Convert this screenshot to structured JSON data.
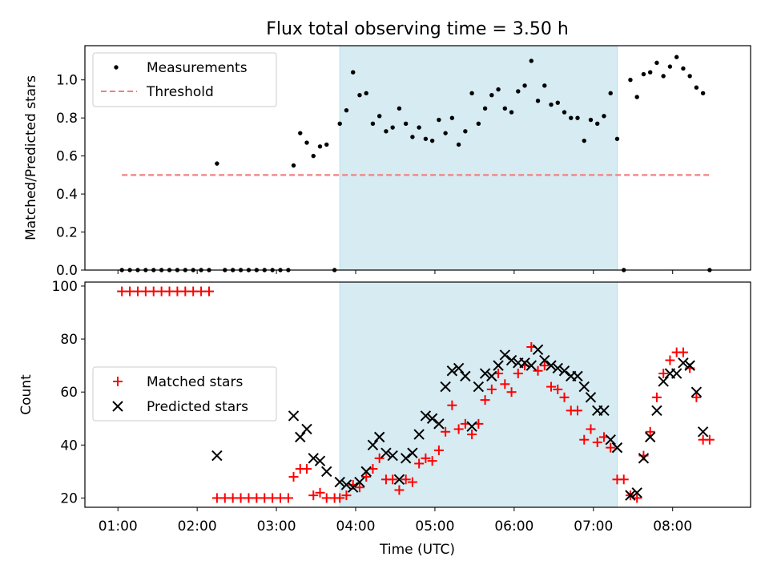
{
  "title": "Flux total observing time = 3.50 h",
  "x_axis": {
    "label": "Time (UTC)",
    "tick_labels": [
      "01:00",
      "02:00",
      "03:00",
      "04:00",
      "05:00",
      "06:00",
      "07:00",
      "08:00"
    ]
  },
  "chart_data": [
    {
      "type": "scatter",
      "ylabel": "Matched/Predicted stars",
      "ylim": [
        0,
        1.18
      ],
      "yticks": [
        0.0,
        0.2,
        0.4,
        0.6,
        0.8,
        1.0
      ],
      "ytick_labels": [
        "0.0",
        "0.2",
        "0.4",
        "0.6",
        "0.8",
        "1.0"
      ],
      "shaded_interval": [
        "03:48",
        "07:18"
      ],
      "legend_position": "upper-left",
      "series": [
        {
          "name": "Measurements",
          "marker": "dot",
          "color": "#000000",
          "points": [
            [
              "01:03",
              0.0
            ],
            [
              "01:09",
              0.0
            ],
            [
              "01:15",
              0.0
            ],
            [
              "01:21",
              0.0
            ],
            [
              "01:27",
              0.0
            ],
            [
              "01:33",
              0.0
            ],
            [
              "01:39",
              0.0
            ],
            [
              "01:45",
              0.0
            ],
            [
              "01:51",
              0.0
            ],
            [
              "01:57",
              0.0
            ],
            [
              "02:03",
              0.0
            ],
            [
              "02:09",
              0.0
            ],
            [
              "02:15",
              0.56
            ],
            [
              "02:21",
              0.0
            ],
            [
              "02:27",
              0.0
            ],
            [
              "02:33",
              0.0
            ],
            [
              "02:39",
              0.0
            ],
            [
              "02:45",
              0.0
            ],
            [
              "02:51",
              0.0
            ],
            [
              "02:57",
              0.0
            ],
            [
              "03:03",
              0.0
            ],
            [
              "03:09",
              0.0
            ],
            [
              "03:13",
              0.55
            ],
            [
              "03:18",
              0.72
            ],
            [
              "03:23",
              0.67
            ],
            [
              "03:28",
              0.6
            ],
            [
              "03:33",
              0.65
            ],
            [
              "03:38",
              0.66
            ],
            [
              "03:44",
              0.0
            ],
            [
              "03:48",
              0.77
            ],
            [
              "03:53",
              0.84
            ],
            [
              "03:58",
              1.04
            ],
            [
              "04:03",
              0.92
            ],
            [
              "04:08",
              0.93
            ],
            [
              "04:13",
              0.77
            ],
            [
              "04:18",
              0.81
            ],
            [
              "04:23",
              0.73
            ],
            [
              "04:28",
              0.75
            ],
            [
              "04:33",
              0.85
            ],
            [
              "04:38",
              0.77
            ],
            [
              "04:43",
              0.7
            ],
            [
              "04:48",
              0.75
            ],
            [
              "04:53",
              0.69
            ],
            [
              "04:58",
              0.68
            ],
            [
              "05:03",
              0.79
            ],
            [
              "05:08",
              0.72
            ],
            [
              "05:13",
              0.8
            ],
            [
              "05:18",
              0.66
            ],
            [
              "05:23",
              0.73
            ],
            [
              "05:28",
              0.93
            ],
            [
              "05:33",
              0.77
            ],
            [
              "05:38",
              0.85
            ],
            [
              "05:43",
              0.92
            ],
            [
              "05:48",
              0.95
            ],
            [
              "05:53",
              0.85
            ],
            [
              "05:58",
              0.83
            ],
            [
              "06:03",
              0.94
            ],
            [
              "06:08",
              0.97
            ],
            [
              "06:13",
              1.1
            ],
            [
              "06:18",
              0.89
            ],
            [
              "06:23",
              0.97
            ],
            [
              "06:28",
              0.87
            ],
            [
              "06:33",
              0.88
            ],
            [
              "06:38",
              0.83
            ],
            [
              "06:43",
              0.8
            ],
            [
              "06:48",
              0.8
            ],
            [
              "06:53",
              0.68
            ],
            [
              "06:58",
              0.79
            ],
            [
              "07:03",
              0.77
            ],
            [
              "07:08",
              0.81
            ],
            [
              "07:13",
              0.93
            ],
            [
              "07:18",
              0.69
            ],
            [
              "07:23",
              0.0
            ],
            [
              "07:28",
              1.0
            ],
            [
              "07:33",
              0.91
            ],
            [
              "07:38",
              1.03
            ],
            [
              "07:43",
              1.04
            ],
            [
              "07:48",
              1.09
            ],
            [
              "07:53",
              1.02
            ],
            [
              "07:58",
              1.07
            ],
            [
              "08:03",
              1.12
            ],
            [
              "08:08",
              1.06
            ],
            [
              "08:13",
              1.02
            ],
            [
              "08:18",
              0.96
            ],
            [
              "08:23",
              0.93
            ],
            [
              "08:28",
              0.0
            ]
          ]
        },
        {
          "name": "Threshold",
          "type": "line",
          "style": "dashed",
          "color": "#f08080",
          "points": [
            [
              "01:03",
              0.5
            ],
            [
              "08:28",
              0.5
            ]
          ]
        }
      ]
    },
    {
      "type": "scatter",
      "ylabel": "Count",
      "ylim": [
        16.5,
        101.5
      ],
      "yticks": [
        20,
        40,
        60,
        80,
        100
      ],
      "ytick_labels": [
        "20",
        "40",
        "60",
        "80",
        "100"
      ],
      "shaded_interval": [
        "03:48",
        "07:18"
      ],
      "legend_position": "center-left",
      "series": [
        {
          "name": "Matched stars",
          "marker": "plus",
          "color": "#ff0000",
          "points": [
            [
              "01:03",
              98
            ],
            [
              "01:09",
              98
            ],
            [
              "01:15",
              98
            ],
            [
              "01:21",
              98
            ],
            [
              "01:27",
              98
            ],
            [
              "01:33",
              98
            ],
            [
              "01:39",
              98
            ],
            [
              "01:45",
              98
            ],
            [
              "01:51",
              98
            ],
            [
              "01:57",
              98
            ],
            [
              "02:03",
              98
            ],
            [
              "02:09",
              98
            ],
            [
              "02:15",
              20
            ],
            [
              "02:21",
              20
            ],
            [
              "02:27",
              20
            ],
            [
              "02:33",
              20
            ],
            [
              "02:39",
              20
            ],
            [
              "02:45",
              20
            ],
            [
              "02:51",
              20
            ],
            [
              "02:57",
              20
            ],
            [
              "03:03",
              20
            ],
            [
              "03:09",
              20
            ],
            [
              "03:13",
              28
            ],
            [
              "03:18",
              31
            ],
            [
              "03:23",
              31
            ],
            [
              "03:28",
              21
            ],
            [
              "03:33",
              22
            ],
            [
              "03:38",
              20
            ],
            [
              "03:44",
              20
            ],
            [
              "03:48",
              20
            ],
            [
              "03:53",
              21
            ],
            [
              "03:58",
              25
            ],
            [
              "04:03",
              24
            ],
            [
              "04:08",
              28
            ],
            [
              "04:13",
              31
            ],
            [
              "04:18",
              35
            ],
            [
              "04:23",
              27
            ],
            [
              "04:28",
              27
            ],
            [
              "04:33",
              23
            ],
            [
              "04:38",
              27
            ],
            [
              "04:43",
              26
            ],
            [
              "04:48",
              33
            ],
            [
              "04:53",
              35
            ],
            [
              "04:58",
              34
            ],
            [
              "05:03",
              38
            ],
            [
              "05:08",
              45
            ],
            [
              "05:13",
              55
            ],
            [
              "05:18",
              46
            ],
            [
              "05:23",
              48
            ],
            [
              "05:28",
              44
            ],
            [
              "05:33",
              48
            ],
            [
              "05:38",
              57
            ],
            [
              "05:43",
              61
            ],
            [
              "05:48",
              67
            ],
            [
              "05:53",
              63
            ],
            [
              "05:58",
              60
            ],
            [
              "06:03",
              67
            ],
            [
              "06:08",
              70
            ],
            [
              "06:13",
              77
            ],
            [
              "06:18",
              68
            ],
            [
              "06:23",
              70
            ],
            [
              "06:28",
              62
            ],
            [
              "06:33",
              61
            ],
            [
              "06:38",
              58
            ],
            [
              "06:43",
              53
            ],
            [
              "06:48",
              53
            ],
            [
              "06:53",
              42
            ],
            [
              "06:58",
              46
            ],
            [
              "07:03",
              41
            ],
            [
              "07:08",
              43
            ],
            [
              "07:13",
              39
            ],
            [
              "07:18",
              27
            ],
            [
              "07:23",
              27
            ],
            [
              "07:28",
              21
            ],
            [
              "07:33",
              20
            ],
            [
              "07:38",
              36
            ],
            [
              "07:43",
              45
            ],
            [
              "07:48",
              58
            ],
            [
              "07:53",
              67
            ],
            [
              "07:58",
              72
            ],
            [
              "08:03",
              75
            ],
            [
              "08:08",
              75
            ],
            [
              "08:13",
              69
            ],
            [
              "08:18",
              58
            ],
            [
              "08:23",
              42
            ],
            [
              "08:28",
              42
            ]
          ]
        },
        {
          "name": "Predicted stars",
          "marker": "x",
          "color": "#000000",
          "points": [
            [
              "02:15",
              36
            ],
            [
              "03:13",
              51
            ],
            [
              "03:18",
              43
            ],
            [
              "03:23",
              46
            ],
            [
              "03:28",
              35
            ],
            [
              "03:33",
              34
            ],
            [
              "03:38",
              30
            ],
            [
              "03:48",
              26
            ],
            [
              "03:53",
              25
            ],
            [
              "03:58",
              24
            ],
            [
              "04:03",
              26
            ],
            [
              "04:08",
              30
            ],
            [
              "04:13",
              40
            ],
            [
              "04:18",
              43
            ],
            [
              "04:23",
              37
            ],
            [
              "04:28",
              36
            ],
            [
              "04:33",
              27
            ],
            [
              "04:38",
              35
            ],
            [
              "04:43",
              37
            ],
            [
              "04:48",
              44
            ],
            [
              "04:53",
              51
            ],
            [
              "04:58",
              50
            ],
            [
              "05:03",
              48
            ],
            [
              "05:08",
              62
            ],
            [
              "05:13",
              68
            ],
            [
              "05:18",
              69
            ],
            [
              "05:23",
              66
            ],
            [
              "05:28",
              47
            ],
            [
              "05:33",
              62
            ],
            [
              "05:38",
              67
            ],
            [
              "05:43",
              66
            ],
            [
              "05:48",
              70
            ],
            [
              "05:53",
              74
            ],
            [
              "05:58",
              72
            ],
            [
              "06:03",
              71
            ],
            [
              "06:08",
              71
            ],
            [
              "06:13",
              70
            ],
            [
              "06:18",
              76
            ],
            [
              "06:23",
              72
            ],
            [
              "06:28",
              70
            ],
            [
              "06:33",
              69
            ],
            [
              "06:38",
              68
            ],
            [
              "06:43",
              66
            ],
            [
              "06:48",
              66
            ],
            [
              "06:53",
              62
            ],
            [
              "06:58",
              58
            ],
            [
              "07:03",
              53
            ],
            [
              "07:08",
              53
            ],
            [
              "07:13",
              42
            ],
            [
              "07:18",
              39
            ],
            [
              "07:28",
              21
            ],
            [
              "07:33",
              22
            ],
            [
              "07:38",
              35
            ],
            [
              "07:43",
              43
            ],
            [
              "07:48",
              53
            ],
            [
              "07:53",
              64
            ],
            [
              "07:58",
              67
            ],
            [
              "08:03",
              67
            ],
            [
              "08:08",
              71
            ],
            [
              "08:13",
              70
            ],
            [
              "08:18",
              60
            ],
            [
              "08:23",
              45
            ]
          ]
        }
      ]
    }
  ]
}
